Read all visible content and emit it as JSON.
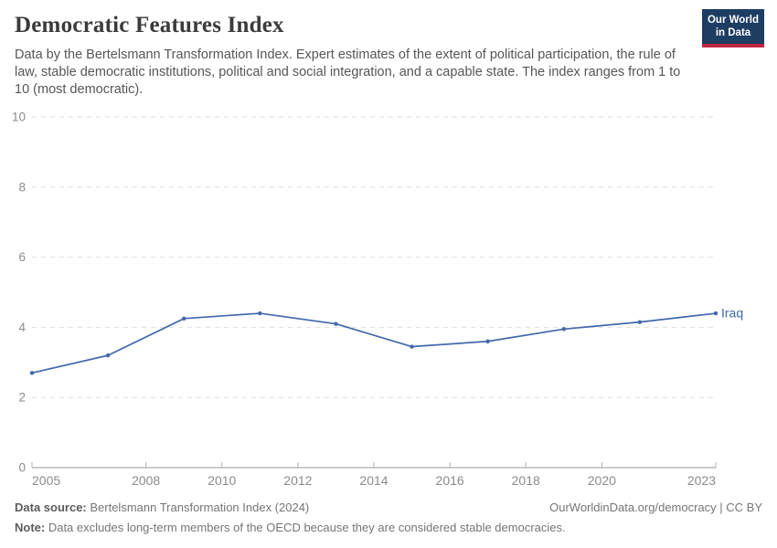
{
  "header": {
    "title": "Democratic Features Index",
    "subtitle": "Data by the Bertelsmann Transformation Index. Expert estimates of the extent of political participation, the rule of law, stable democratic institutions, political and social integration, and a capable state. The index ranges from 1 to 10 (most democratic).",
    "logo": {
      "line1": "Our World",
      "line2": "in Data",
      "bg_color": "#1d3d63",
      "bar_color": "#c12641"
    }
  },
  "chart_data": {
    "type": "line",
    "title": "Democratic Features Index",
    "xlabel": "",
    "ylabel": "",
    "xlim": [
      2005,
      2023
    ],
    "ylim": [
      0,
      10
    ],
    "y_ticks": [
      0,
      2,
      4,
      6,
      8,
      10
    ],
    "x_tick_labels": [
      2005,
      2008,
      2010,
      2012,
      2014,
      2016,
      2018,
      2020,
      2023
    ],
    "grid": "horizontal-dashed",
    "legend_position": "end-of-line-label",
    "series": [
      {
        "name": "Iraq",
        "color": "#4268ab",
        "x": [
          2005,
          2007,
          2009,
          2011,
          2013,
          2015,
          2017,
          2019,
          2021,
          2023
        ],
        "values": [
          2.7,
          3.2,
          4.25,
          4.4,
          4.1,
          3.45,
          3.6,
          3.95,
          4.15,
          4.4
        ]
      }
    ],
    "axis_color": "#949494",
    "grid_color": "#dedede",
    "tick_label_color": "#8b8b8b"
  },
  "footer": {
    "source_label": "Data source:",
    "source_text": " Bertelsmann Transformation Index (2024)",
    "rights": "OurWorldinData.org/democracy | CC BY",
    "note_label": "Note:",
    "note_text": " Data excludes long-term members of the OECD because they are considered stable democracies."
  }
}
